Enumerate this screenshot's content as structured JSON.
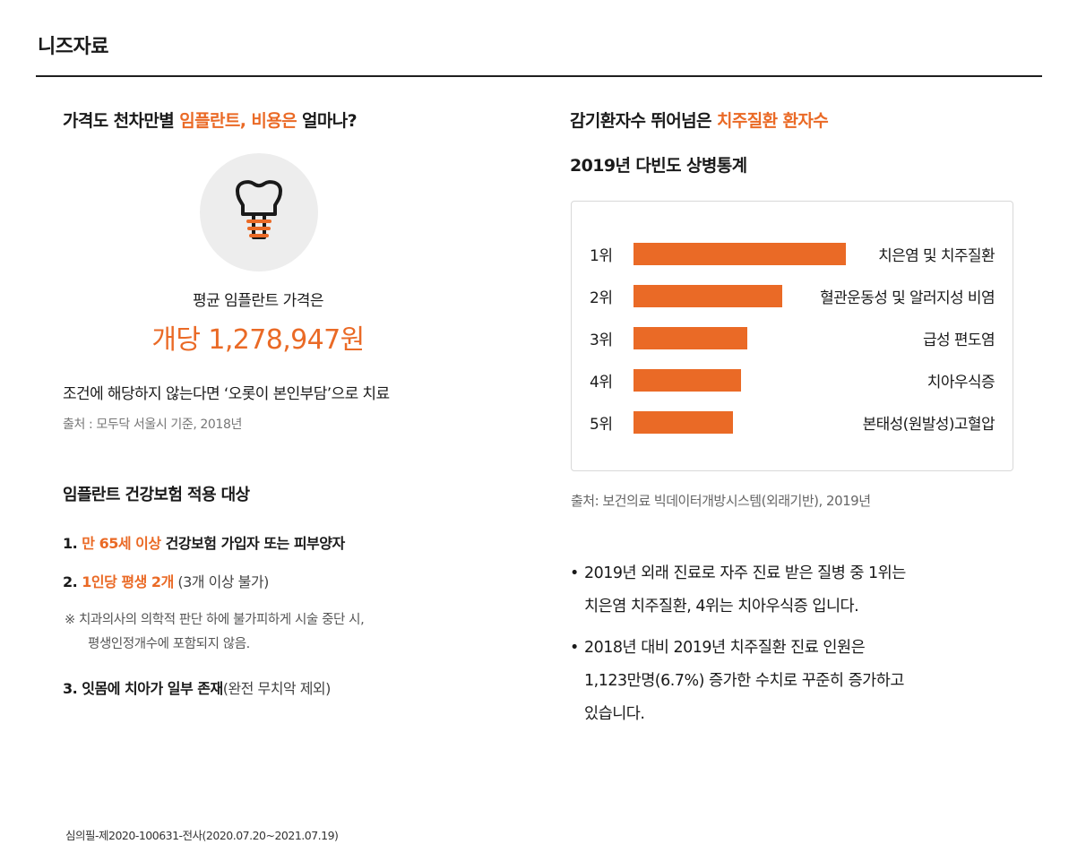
{
  "page_title": "니즈자료",
  "left": {
    "heading_prefix": "가격도 천차만별 ",
    "heading_accent": "임플란트, 비용은",
    "heading_suffix": " 얼마나?",
    "icon": "dental-implant-icon",
    "avg_label": "평균 임플란트 가격은",
    "avg_price": "개당 1,278,947원",
    "note": "조건에 해당하지 않는다면 ‘오롯이 본인부담’으로 치료",
    "source": "출처 : 모두닥 서울시 기준, 2018년",
    "insurance": {
      "title": "임플란트 건강보험 적용 대상",
      "item1_num": "1. ",
      "item1_accent": "만 65세 이상",
      "item1_rest": " 건강보험 가입자 또는 피부양자",
      "item2_num": "2. ",
      "item2_accent": "1인당 평생 2개",
      "item2_plain": " (3개 이상 불가)",
      "note_line1": "※  치과의사의 의학적 판단 하에 불가피하게 시술 중단 시,",
      "note_line2": "평생인정개수에 포함되지 않음.",
      "item3_bold": "3. 잇몸에 치아가 일부 존재",
      "item3_plain": "(완전 무치악 제외)"
    }
  },
  "right": {
    "heading1_prefix": "감기환자수 뛰어넘은 ",
    "heading1_accent": "치주질환 환자수",
    "heading2": "2019년 다빈도 상병통계",
    "chart_source": "출처: 보건의료 빅데이터개방시스템(외래기반), 2019년",
    "bullet1_line1": "2019년 외래 진료로 자주 진료 받은 질병 중 1위는",
    "bullet1_line2": "치은염 치주질환, 4위는 치아우식증 입니다.",
    "bullet2_line1": "2018년 대비 2019년 치주질환 진료 인원은",
    "bullet2_line2": "1,123만명(6.7%) 증가한 수치로 꾸준히 증가하고",
    "bullet2_line3": "있습니다.",
    "bullet_symbol": "•"
  },
  "chart_data": {
    "type": "bar",
    "orientation": "horizontal",
    "categories": [
      "1위",
      "2위",
      "3위",
      "4위",
      "5위"
    ],
    "labels": [
      "치은염 및 치주질환",
      "혈관운동성 및 알러지성 비염",
      "급성 편도염",
      "치아우식증",
      "본태성(원발성)고혈압"
    ],
    "values": [
      100,
      70,
      53.5,
      50.5,
      47
    ],
    "value_unit": "relative",
    "bar_color": "#ea6a26"
  },
  "colors": {
    "accent": "#ea6a26",
    "text": "#1a1a1a"
  },
  "footer": "심의필-제2020-100631-전사(2020.07.20~2021.07.19)"
}
